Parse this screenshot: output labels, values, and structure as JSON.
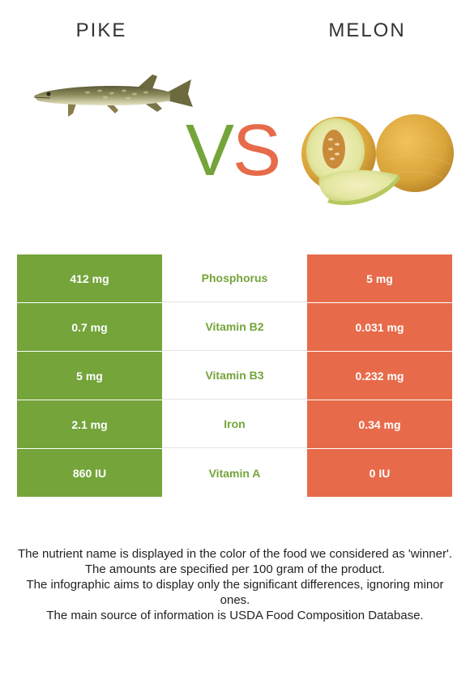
{
  "header": {
    "left_food": "PIKE",
    "right_food": "MELON",
    "vs_v": "V",
    "vs_s": "S"
  },
  "colors": {
    "winner_left": "#74a43a",
    "winner_right": "#e76b4a"
  },
  "table": {
    "rows": [
      {
        "left": "412 mg",
        "nutrient": "Phosphorus",
        "right": "5 mg"
      },
      {
        "left": "0.7 mg",
        "nutrient": "Vitamin B2",
        "right": "0.031 mg"
      },
      {
        "left": "5 mg",
        "nutrient": "Vitamin B3",
        "right": "0.232 mg"
      },
      {
        "left": "2.1 mg",
        "nutrient": "Iron",
        "right": "0.34 mg"
      },
      {
        "left": "860 IU",
        "nutrient": "Vitamin A",
        "right": "0 IU"
      }
    ]
  },
  "footnote": {
    "line1": "The nutrient name is displayed in the color of the food we considered as 'winner'.",
    "line2": "The amounts are specified per 100 gram of the product.",
    "line3": "The infographic aims to display only the significant differences, ignoring minor ones.",
    "line4": "The main source of information is USDA Food Composition Database."
  }
}
